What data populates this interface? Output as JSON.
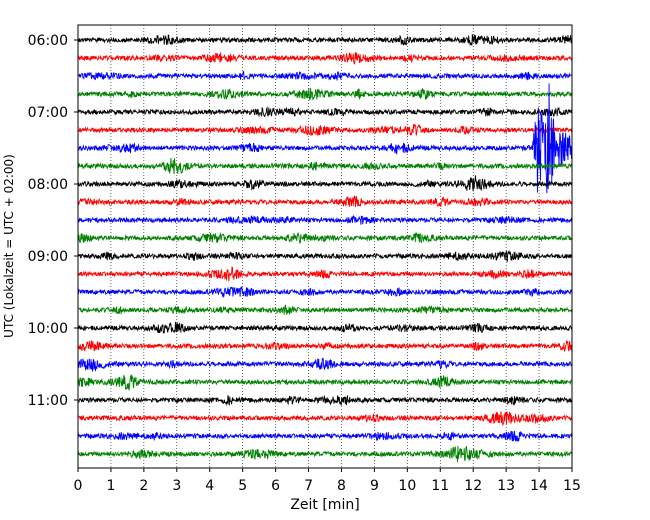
{
  "chart_data": {
    "type": "line",
    "title": "",
    "xlabel": "Zeit  [min]",
    "ylabel": "UTC (Lokalzeit = UTC + 02:00)",
    "xlim": [
      0,
      15
    ],
    "x_ticks": [
      "0",
      "1",
      "2",
      "3",
      "4",
      "5",
      "6",
      "7",
      "8",
      "9",
      "10",
      "11",
      "12",
      "13",
      "14",
      "15"
    ],
    "y_tick_labels": [
      "06:00",
      "07:00",
      "08:00",
      "09:00",
      "10:00",
      "11:00"
    ],
    "grid": "vertical dotted",
    "trace_colors": [
      "#000000",
      "#ff0000",
      "#0000ff",
      "#008000"
    ],
    "traces": [
      {
        "start": "06:00",
        "color": "#000000"
      },
      {
        "start": "06:15",
        "color": "#ff0000"
      },
      {
        "start": "06:30",
        "color": "#0000ff"
      },
      {
        "start": "06:45",
        "color": "#008000"
      },
      {
        "start": "07:00",
        "color": "#000000"
      },
      {
        "start": "07:15",
        "color": "#ff0000"
      },
      {
        "start": "07:30",
        "color": "#0000ff",
        "event": {
          "onset_min": 13.8,
          "peak_min": 14.3,
          "note": "seismic event"
        }
      },
      {
        "start": "07:45",
        "color": "#008000"
      },
      {
        "start": "08:00",
        "color": "#000000"
      },
      {
        "start": "08:15",
        "color": "#ff0000"
      },
      {
        "start": "08:30",
        "color": "#0000ff"
      },
      {
        "start": "08:45",
        "color": "#008000"
      },
      {
        "start": "09:00",
        "color": "#000000"
      },
      {
        "start": "09:15",
        "color": "#ff0000"
      },
      {
        "start": "09:30",
        "color": "#0000ff"
      },
      {
        "start": "09:45",
        "color": "#008000"
      },
      {
        "start": "10:00",
        "color": "#000000"
      },
      {
        "start": "10:15",
        "color": "#ff0000"
      },
      {
        "start": "10:30",
        "color": "#0000ff"
      },
      {
        "start": "10:45",
        "color": "#008000"
      },
      {
        "start": "11:00",
        "color": "#000000"
      },
      {
        "start": "11:15",
        "color": "#ff0000"
      },
      {
        "start": "11:30",
        "color": "#0000ff"
      },
      {
        "start": "11:45",
        "color": "#008000"
      }
    ]
  }
}
